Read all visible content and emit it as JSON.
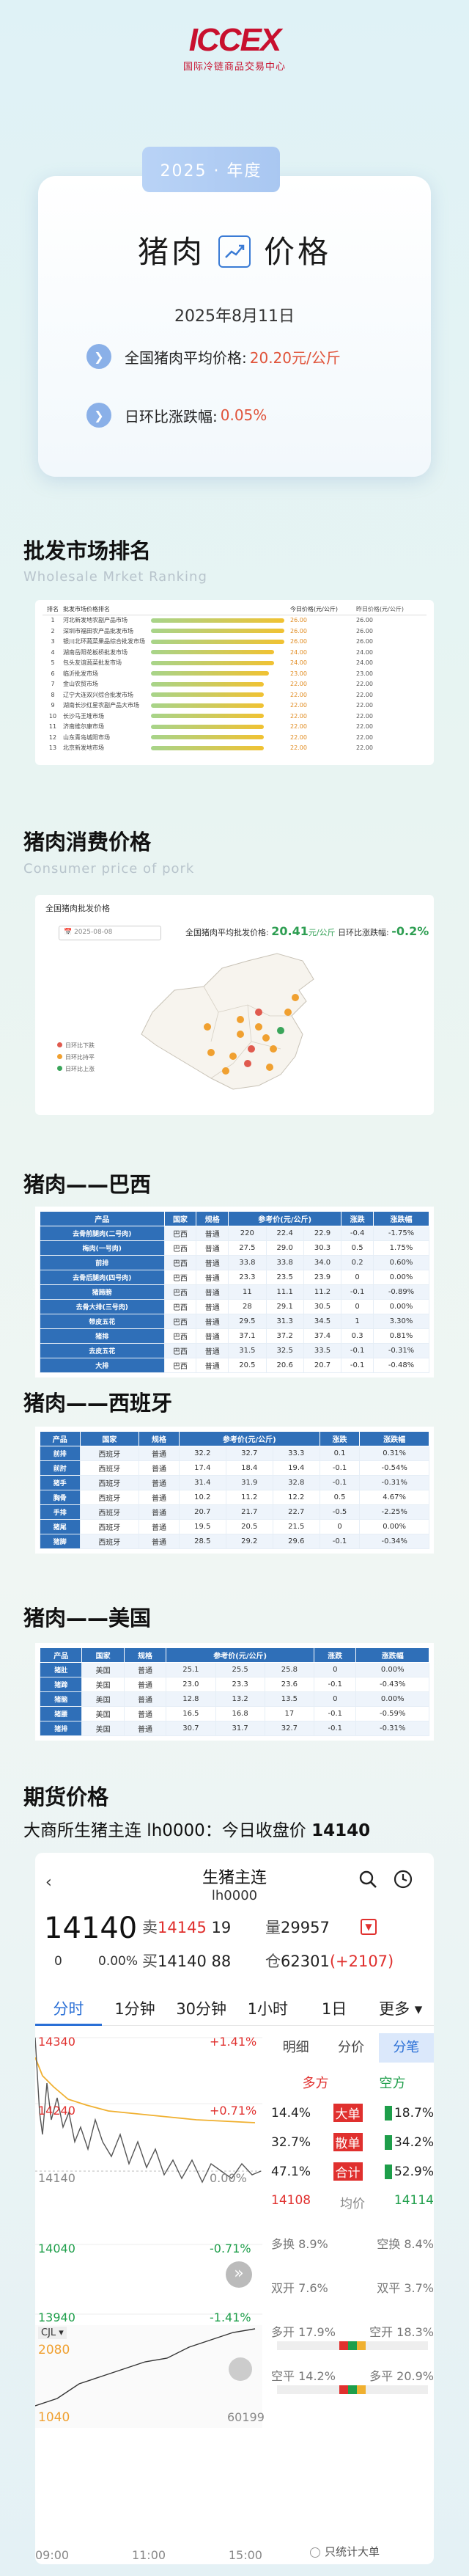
{
  "logo": {
    "mark": "ICCEX",
    "subtitle": "国际冷链商品交易中心"
  },
  "hero": {
    "year": "2025 · 年度",
    "title_left": "猪肉",
    "title_right": "价格",
    "date": "2025年8月11日",
    "avg_label": "全国猪肉平均价格:",
    "avg_value": "20.20元/公斤",
    "change_label": "日环比涨跌幅:",
    "change_value": "0.05%"
  },
  "sections": {
    "wholesale_title": "批发市场排名",
    "wholesale_sub": "Wholesale Mrket Ranking",
    "consumer_title": "猪肉消费价格",
    "consumer_sub": "Consumer price of pork",
    "brazil_title": "猪肉——巴西",
    "spain_title": "猪肉——西班牙",
    "usa_title": "猪肉——美国",
    "futures_title": "期货价格",
    "futures_line_label": "大商所生猪主连 lh0000：今日收盘价",
    "futures_line_value": "14140"
  },
  "ranking": {
    "headers": [
      "排名",
      "批发市场价格排名",
      "",
      "今日价格(元/公斤)",
      "昨日价格(元/公斤)"
    ],
    "rows": [
      {
        "rank": "1",
        "name": "河北新发地农副产品市场",
        "value": 26.0,
        "price": "26.00",
        "prev": "26.00"
      },
      {
        "rank": "2",
        "name": "深圳市福田农产品批发市场",
        "value": 26.0,
        "price": "26.00",
        "prev": "26.00"
      },
      {
        "rank": "3",
        "name": "银川北环蔬菜果品综合批发市场",
        "value": 26.0,
        "price": "26.00",
        "prev": "26.00"
      },
      {
        "rank": "4",
        "name": "湖南岳阳花板桥批发市场",
        "value": 24.0,
        "price": "24.00",
        "prev": "24.00"
      },
      {
        "rank": "5",
        "name": "包头友谊蔬菜批发市场",
        "value": 24.0,
        "price": "24.00",
        "prev": "24.00"
      },
      {
        "rank": "6",
        "name": "临沂批发市场",
        "value": 23.0,
        "price": "23.00",
        "prev": "23.00"
      },
      {
        "rank": "7",
        "name": "金山农贸市场",
        "value": 22.0,
        "price": "22.00",
        "prev": "22.00"
      },
      {
        "rank": "8",
        "name": "辽宁大连双兴综合批发市场",
        "value": 22.0,
        "price": "22.00",
        "prev": "22.00"
      },
      {
        "rank": "9",
        "name": "湖南长沙红星农副产品大市场",
        "value": 22.0,
        "price": "22.00",
        "prev": "22.00"
      },
      {
        "rank": "10",
        "name": "长沙马王堆市场",
        "value": 22.0,
        "price": "22.00",
        "prev": "22.00"
      },
      {
        "rank": "11",
        "name": "济南维尔康市场",
        "value": 22.0,
        "price": "22.00",
        "prev": "22.00"
      },
      {
        "rank": "12",
        "name": "山东青岛城阳市场",
        "value": 22.0,
        "price": "22.00",
        "prev": "22.00"
      },
      {
        "rank": "13",
        "name": "北京新发地市场",
        "value": 22.0,
        "price": "22.00",
        "prev": "22.00"
      }
    ]
  },
  "consumer_map": {
    "title": "全国猪肉批发价格",
    "date": "2025-08-08",
    "avg_label": "全国猪肉平均批发价格:",
    "avg_value": "20.41",
    "avg_unit": "元/公斤",
    "change_label": "日环比涨跌幅:",
    "change_value": "-0.2%",
    "legend": [
      {
        "label": "日环比下跌",
        "color": "#e05a4e"
      },
      {
        "label": "日环比持平",
        "color": "#f0a030"
      },
      {
        "label": "日环比上涨",
        "color": "#3aa55a"
      }
    ]
  },
  "table_headers": [
    "产品",
    "国家",
    "规格",
    "参考价(元/公斤)",
    "涨跌",
    "涨跌幅"
  ],
  "brazil": [
    [
      "去骨前腿肉(二号肉)",
      "巴西",
      "普通",
      "220",
      "22.4",
      "22.9",
      "-0.4",
      "-1.75%"
    ],
    [
      "梅肉(一号肉)",
      "巴西",
      "普通",
      "27.5",
      "29.0",
      "30.3",
      "0.5",
      "1.75%"
    ],
    [
      "前排",
      "巴西",
      "普通",
      "33.8",
      "33.8",
      "34.0",
      "0.2",
      "0.60%"
    ],
    [
      "去骨后腿肉(四号肉)",
      "巴西",
      "普通",
      "23.3",
      "23.5",
      "23.9",
      "0",
      "0.00%"
    ],
    [
      "猪蹄膀",
      "巴西",
      "普通",
      "11",
      "11.1",
      "11.2",
      "-0.1",
      "-0.89%"
    ],
    [
      "去骨大排(三号肉)",
      "巴西",
      "普通",
      "28",
      "29.1",
      "30.5",
      "0",
      "0.00%"
    ],
    [
      "带皮五花",
      "巴西",
      "普通",
      "29.5",
      "31.3",
      "34.5",
      "1",
      "3.30%"
    ],
    [
      "猪排",
      "巴西",
      "普通",
      "37.1",
      "37.2",
      "37.4",
      "0.3",
      "0.81%"
    ],
    [
      "去皮五花",
      "巴西",
      "普通",
      "31.5",
      "32.5",
      "33.5",
      "-0.1",
      "-0.31%"
    ],
    [
      "大排",
      "巴西",
      "普通",
      "20.5",
      "20.6",
      "20.7",
      "-0.1",
      "-0.48%"
    ]
  ],
  "spain": [
    [
      "前排",
      "西班牙",
      "普通",
      "32.2",
      "32.7",
      "33.3",
      "0.1",
      "0.31%"
    ],
    [
      "前肘",
      "西班牙",
      "普通",
      "17.4",
      "18.4",
      "19.4",
      "-0.1",
      "-0.54%"
    ],
    [
      "猪手",
      "西班牙",
      "普通",
      "31.4",
      "31.9",
      "32.8",
      "-0.1",
      "-0.31%"
    ],
    [
      "胸骨",
      "西班牙",
      "普通",
      "10.2",
      "11.2",
      "12.2",
      "0.5",
      "4.67%"
    ],
    [
      "手排",
      "西班牙",
      "普通",
      "20.7",
      "21.7",
      "22.7",
      "-0.5",
      "-2.25%"
    ],
    [
      "猪尾",
      "西班牙",
      "普通",
      "19.5",
      "20.5",
      "21.5",
      "0",
      "0.00%"
    ],
    [
      "猪脚",
      "西班牙",
      "普通",
      "28.5",
      "29.2",
      "29.6",
      "-0.1",
      "-0.34%"
    ]
  ],
  "usa": [
    [
      "猪肚",
      "美国",
      "普通",
      "25.1",
      "25.5",
      "25.8",
      "0",
      "0.00%"
    ],
    [
      "猪蹄",
      "美国",
      "普通",
      "23.0",
      "23.3",
      "23.6",
      "-0.1",
      "-0.43%"
    ],
    [
      "猪脑",
      "美国",
      "普通",
      "12.8",
      "13.2",
      "13.5",
      "0",
      "0.00%"
    ],
    [
      "猪腰",
      "美国",
      "普通",
      "16.5",
      "16.8",
      "17",
      "-0.1",
      "-0.59%"
    ],
    [
      "猪排",
      "美国",
      "普通",
      "30.7",
      "31.7",
      "32.7",
      "-0.1",
      "-0.31%"
    ]
  ],
  "futures_app": {
    "name": "生猪主连",
    "code": "lh0000",
    "price": "14140",
    "chg": "0",
    "chg_pct": "0.00%",
    "sell_label": "卖",
    "sell_price": "14145",
    "sell_vol": "19",
    "buy_label": "买",
    "buy_price": "14140",
    "buy_vol": "88",
    "vol_label": "量",
    "vol": "29957",
    "oi_label": "仓",
    "oi": "62301",
    "oi_chg": "(+2107)",
    "tabs": [
      "分时",
      "1分钟",
      "30分钟",
      "1小时",
      "1日",
      "更多 ▾"
    ],
    "side_tabs": [
      "明细",
      "分价",
      "分笔"
    ],
    "y_left": [
      "14340",
      "14240",
      "14140",
      "14040",
      "13940"
    ],
    "y_right": [
      "+1.41%",
      "+0.71%",
      "0.00%",
      "-0.71%",
      "-1.41%"
    ],
    "vol_axis": [
      "2080",
      "1040"
    ],
    "vol_right": "60199",
    "cjl": "CJL ▾",
    "time_labels": [
      "09:00",
      "11:00",
      "15:00"
    ],
    "flow_head": [
      "多方",
      "空方"
    ],
    "flow_rows": [
      {
        "l": "14.4%",
        "m": "大单",
        "r": "18.7%"
      },
      {
        "l": "32.7%",
        "m": "散单",
        "r": "34.2%"
      },
      {
        "l": "47.1%",
        "m": "合计",
        "r": "52.9%"
      }
    ],
    "avg_row": {
      "l": "14108",
      "m": "均价",
      "r": "14114"
    },
    "stats": [
      {
        "l": "多换 8.9%",
        "r": "空换 8.4%"
      },
      {
        "l": "双开 7.6%",
        "r": "双平 3.7%"
      },
      {
        "l": "多开 17.9%",
        "r": "空开 18.3%"
      },
      {
        "l": "空平 14.2%",
        "r": "多平 20.9%"
      }
    ],
    "only_big": "只统计大单",
    "colors": {
      "up": "#e0302e",
      "down": "#1e9e4a",
      "accent": "#2a6fd6"
    }
  }
}
